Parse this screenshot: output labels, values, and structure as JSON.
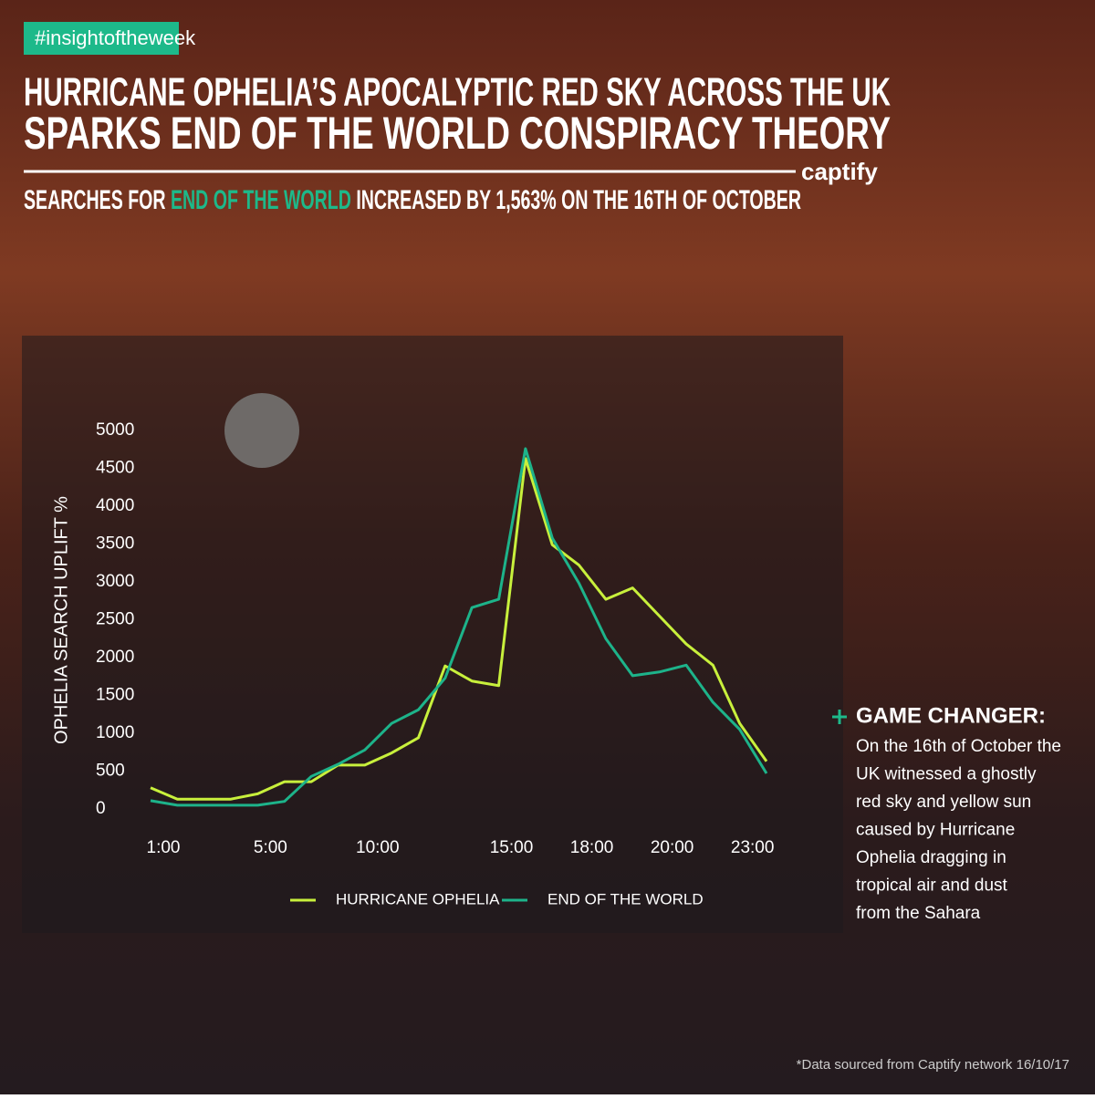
{
  "tag": "#insightoftheweek",
  "headline": [
    "HURRICANE OPHELIA’S APOCALYPTIC RED SKY ACROSS THE UK",
    "SPARKS END OF THE WORLD CONSPIRACY THEORY"
  ],
  "logo": "captify",
  "subtitle": {
    "before": "SEARCHES FOR",
    "highlight": "END OF THE WORLD",
    "after": "INCREASED BY 1,563% ON THE 16TH OF OCTOBER"
  },
  "side_note": {
    "title": "GAME CHANGER:",
    "lines": [
      "On the 16th of October the",
      "UK witnessed a ghostly",
      "red sky and yellow sun",
      "caused by Hurricane",
      "Ophelia dragging in",
      "tropical air and dust",
      " from the Sahara"
    ]
  },
  "footnote": "*Data sourced from Captify network 16/10/17",
  "chart_data": {
    "type": "line",
    "y_label": "OPHELIA SEARCH UPLIFT %",
    "categories": [
      "1:00",
      null,
      null,
      null,
      "5:00",
      null,
      null,
      null,
      "10:00",
      null,
      null,
      null,
      null,
      "15:00",
      null,
      null,
      "18:00",
      null,
      null,
      "20:00",
      null,
      null,
      "23:00",
      null
    ],
    "series": [
      {
        "name": "HURRICANE OPHELIA",
        "color": "#c8f03c",
        "values": [
          280,
          130,
          130,
          130,
          200,
          360,
          360,
          580,
          580,
          740,
          940,
          1890,
          1690,
          1630,
          4630,
          3490,
          3220,
          2770,
          2920,
          2550,
          2180,
          1900,
          1130,
          630
        ]
      },
      {
        "name": "END OF THE WORLD",
        "color": "#1db38a",
        "values": [
          110,
          50,
          50,
          50,
          50,
          100,
          430,
          590,
          780,
          1130,
          1310,
          1730,
          2660,
          2770,
          4760,
          3580,
          2980,
          2250,
          1760,
          1810,
          1900,
          1410,
          1050,
          470
        ]
      }
    ],
    "ylim": [
      0,
      5000
    ],
    "yticks": [
      0,
      500,
      1000,
      1500,
      2000,
      2500,
      3000,
      3500,
      4000,
      4500,
      5000
    ],
    "grid": false
  }
}
